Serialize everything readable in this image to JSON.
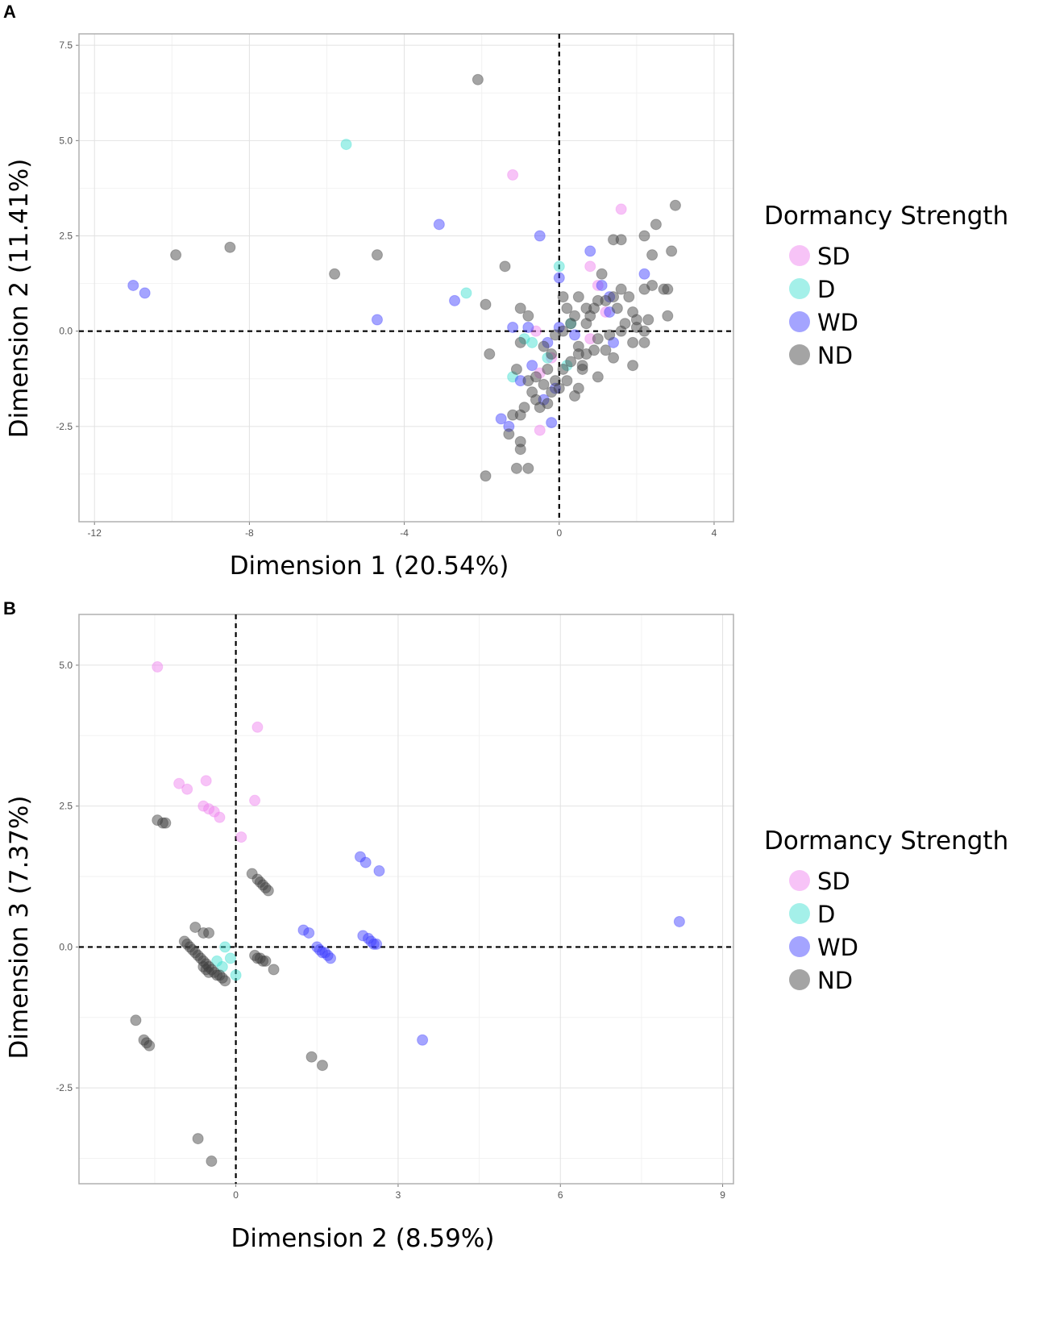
{
  "chart_data": [
    {
      "panel": "A",
      "type": "scatter",
      "title": "",
      "xlabel": "Dimension 1 (20.54%)",
      "ylabel": "Dimension 2 (11.41%)",
      "xlim": [
        -12.4,
        4.5
      ],
      "ylim": [
        -5.0,
        7.8
      ],
      "xticks": [
        -12,
        -8,
        -4,
        0,
        4
      ],
      "yticks": [
        -2.5,
        0.0,
        2.5,
        5.0,
        7.5
      ],
      "xtick_labels": [
        "-12",
        "-8",
        "-4",
        "0",
        "4"
      ],
      "ytick_labels": [
        "-2.5",
        "0.0",
        "2.5",
        "5.0",
        "7.5"
      ],
      "grid": true,
      "reference_lines": {
        "x": 0,
        "y": 0
      },
      "legend": {
        "title": "Dormancy Strength",
        "position": "right",
        "entries": [
          "SD",
          "D",
          "WD",
          "ND"
        ]
      },
      "series": [
        {
          "name": "SD",
          "color": "#ee82ee",
          "points": [
            [
              -1.2,
              4.1
            ],
            [
              1.6,
              3.2
            ],
            [
              0.8,
              1.7
            ],
            [
              1.0,
              1.2
            ],
            [
              -0.6,
              0.0
            ],
            [
              0.8,
              -0.2
            ],
            [
              -0.5,
              -1.1
            ],
            [
              -0.5,
              -2.6
            ],
            [
              -0.2,
              -0.7
            ],
            [
              1.2,
              0.5
            ]
          ]
        },
        {
          "name": "D",
          "color": "#40e0d0",
          "points": [
            [
              -5.5,
              4.9
            ],
            [
              -2.4,
              1.0
            ],
            [
              0.0,
              1.7
            ],
            [
              -1.2,
              -1.2
            ],
            [
              -0.7,
              -0.3
            ],
            [
              -0.3,
              -0.7
            ],
            [
              0.2,
              -0.9
            ],
            [
              -0.9,
              -0.2
            ],
            [
              0.3,
              0.2
            ]
          ]
        },
        {
          "name": "WD",
          "color": "#4040ff",
          "points": [
            [
              -11.0,
              1.2
            ],
            [
              -10.7,
              1.0
            ],
            [
              -3.1,
              2.8
            ],
            [
              -0.5,
              2.5
            ],
            [
              -4.7,
              0.3
            ],
            [
              -2.7,
              0.8
            ],
            [
              -1.2,
              0.1
            ],
            [
              -0.8,
              0.1
            ],
            [
              -0.3,
              -0.3
            ],
            [
              0.0,
              0.1
            ],
            [
              -0.7,
              -0.9
            ],
            [
              -1.0,
              -1.3
            ],
            [
              -1.5,
              -2.3
            ],
            [
              -1.3,
              -2.5
            ],
            [
              -0.2,
              -2.4
            ],
            [
              -0.1,
              -1.5
            ],
            [
              0.8,
              2.1
            ],
            [
              0.0,
              1.4
            ],
            [
              1.1,
              1.2
            ],
            [
              1.3,
              0.9
            ],
            [
              1.3,
              0.5
            ],
            [
              1.4,
              -0.3
            ],
            [
              2.2,
              1.5
            ],
            [
              -0.4,
              -1.8
            ],
            [
              0.4,
              -0.1
            ]
          ]
        },
        {
          "name": "ND",
          "color": "#404040",
          "points": [
            [
              -2.1,
              6.6
            ],
            [
              -8.5,
              2.2
            ],
            [
              -9.9,
              2.0
            ],
            [
              -5.8,
              1.5
            ],
            [
              -4.7,
              2.0
            ],
            [
              -1.4,
              1.7
            ],
            [
              -1.9,
              0.7
            ],
            [
              -1.8,
              -0.6
            ],
            [
              -1.0,
              0.6
            ],
            [
              -0.8,
              0.4
            ],
            [
              -1.0,
              -0.3
            ],
            [
              -0.4,
              -0.4
            ],
            [
              -0.1,
              -0.1
            ],
            [
              0.1,
              0.9
            ],
            [
              0.2,
              0.6
            ],
            [
              0.4,
              0.4
            ],
            [
              0.5,
              0.9
            ],
            [
              0.7,
              0.2
            ],
            [
              0.9,
              0.6
            ],
            [
              1.0,
              0.8
            ],
            [
              1.1,
              1.5
            ],
            [
              1.4,
              0.9
            ],
            [
              1.5,
              0.6
            ],
            [
              1.8,
              0.9
            ],
            [
              2.0,
              0.3
            ],
            [
              2.2,
              1.1
            ],
            [
              2.4,
              1.2
            ],
            [
              2.5,
              2.8
            ],
            [
              2.2,
              2.5
            ],
            [
              2.4,
              2.0
            ],
            [
              1.6,
              2.4
            ],
            [
              1.4,
              2.4
            ],
            [
              2.9,
              2.1
            ],
            [
              3.0,
              3.3
            ],
            [
              2.8,
              1.1
            ],
            [
              2.7,
              1.1
            ],
            [
              2.8,
              0.4
            ],
            [
              2.3,
              0.3
            ],
            [
              2.2,
              0.0
            ],
            [
              1.9,
              -0.3
            ],
            [
              1.9,
              -0.9
            ],
            [
              2.2,
              -0.3
            ],
            [
              1.6,
              0.0
            ],
            [
              1.3,
              -0.1
            ],
            [
              1.0,
              -0.2
            ],
            [
              0.9,
              -0.5
            ],
            [
              0.7,
              -0.6
            ],
            [
              0.5,
              -0.4
            ],
            [
              0.6,
              -0.9
            ],
            [
              0.3,
              -0.8
            ],
            [
              0.1,
              -1.0
            ],
            [
              -0.1,
              -1.3
            ],
            [
              -0.2,
              -1.6
            ],
            [
              -0.3,
              -1.9
            ],
            [
              -0.5,
              -2.0
            ],
            [
              -0.6,
              -1.8
            ],
            [
              -0.7,
              -1.6
            ],
            [
              -0.8,
              -1.3
            ],
            [
              -0.9,
              -2.0
            ],
            [
              -1.0,
              -2.2
            ],
            [
              -1.2,
              -2.2
            ],
            [
              -1.3,
              -2.7
            ],
            [
              -1.0,
              -2.9
            ],
            [
              -1.0,
              -3.1
            ],
            [
              -1.1,
              -3.6
            ],
            [
              -0.8,
              -3.6
            ],
            [
              -1.9,
              -3.8
            ],
            [
              -1.1,
              -1.0
            ],
            [
              -0.6,
              -1.2
            ],
            [
              0.2,
              -1.3
            ],
            [
              0.4,
              -1.7
            ],
            [
              -0.3,
              -1.0
            ],
            [
              0.6,
              -1.0
            ],
            [
              1.0,
              -1.2
            ],
            [
              1.2,
              -0.5
            ],
            [
              1.4,
              -0.7
            ],
            [
              0.8,
              0.4
            ],
            [
              0.3,
              0.2
            ],
            [
              0.1,
              0.0
            ],
            [
              -0.2,
              -0.6
            ],
            [
              0.5,
              -0.6
            ],
            [
              1.7,
              0.2
            ],
            [
              1.9,
              0.5
            ],
            [
              2.0,
              0.1
            ],
            [
              0.7,
              0.6
            ],
            [
              1.2,
              0.8
            ],
            [
              1.6,
              1.1
            ],
            [
              0.5,
              -1.5
            ],
            [
              0.0,
              -1.5
            ],
            [
              -0.4,
              -1.4
            ]
          ]
        }
      ]
    },
    {
      "panel": "B",
      "type": "scatter",
      "title": "",
      "xlabel": "Dimension 2 (8.59%)",
      "ylabel": "Dimension 3 (7.37%)",
      "xlim": [
        -2.9,
        9.2
      ],
      "ylim": [
        -4.2,
        5.9
      ],
      "xticks": [
        0,
        3,
        6,
        9
      ],
      "yticks": [
        -2.5,
        0.0,
        2.5,
        5.0
      ],
      "xtick_labels": [
        "0",
        "3",
        "6",
        "9"
      ],
      "ytick_labels": [
        "-2.5",
        "0.0",
        "2.5",
        "5.0"
      ],
      "grid": true,
      "reference_lines": {
        "x": 0,
        "y": 0
      },
      "legend": {
        "title": "Dormancy Strength",
        "position": "right",
        "entries": [
          "SD",
          "D",
          "WD",
          "ND"
        ]
      },
      "series": [
        {
          "name": "SD",
          "color": "#ee82ee",
          "points": [
            [
              -1.45,
              4.97
            ],
            [
              0.4,
              3.9
            ],
            [
              -1.05,
              2.9
            ],
            [
              -0.9,
              2.8
            ],
            [
              -0.55,
              2.95
            ],
            [
              -0.6,
              2.5
            ],
            [
              -0.5,
              2.45
            ],
            [
              -0.4,
              2.4
            ],
            [
              -0.3,
              2.3
            ],
            [
              0.35,
              2.6
            ],
            [
              0.1,
              1.95
            ]
          ]
        },
        {
          "name": "D",
          "color": "#40e0d0",
          "points": [
            [
              -0.2,
              0.0
            ],
            [
              -0.1,
              -0.2
            ],
            [
              -0.35,
              -0.25
            ],
            [
              0.0,
              -0.5
            ],
            [
              -0.25,
              -0.35
            ]
          ]
        },
        {
          "name": "WD",
          "color": "#4040ff",
          "points": [
            [
              8.2,
              0.45
            ],
            [
              2.3,
              1.6
            ],
            [
              2.4,
              1.5
            ],
            [
              2.65,
              1.35
            ],
            [
              1.25,
              0.3
            ],
            [
              1.35,
              0.25
            ],
            [
              1.5,
              0.0
            ],
            [
              1.55,
              -0.05
            ],
            [
              1.6,
              -0.1
            ],
            [
              1.7,
              -0.15
            ],
            [
              1.65,
              -0.1
            ],
            [
              1.75,
              -0.2
            ],
            [
              2.35,
              0.2
            ],
            [
              2.45,
              0.15
            ],
            [
              2.5,
              0.1
            ],
            [
              2.55,
              0.05
            ],
            [
              2.6,
              0.05
            ],
            [
              3.45,
              -1.65
            ]
          ]
        },
        {
          "name": "ND",
          "color": "#404040",
          "points": [
            [
              -1.45,
              2.25
            ],
            [
              -1.35,
              2.2
            ],
            [
              -1.3,
              2.2
            ],
            [
              0.3,
              1.3
            ],
            [
              0.4,
              1.2
            ],
            [
              0.45,
              1.15
            ],
            [
              0.5,
              1.1
            ],
            [
              0.55,
              1.05
            ],
            [
              0.6,
              1.0
            ],
            [
              -0.75,
              0.35
            ],
            [
              -0.6,
              0.25
            ],
            [
              -0.5,
              0.25
            ],
            [
              -0.95,
              0.1
            ],
            [
              -0.9,
              0.05
            ],
            [
              -0.85,
              0.0
            ],
            [
              -0.8,
              -0.05
            ],
            [
              -0.75,
              -0.1
            ],
            [
              -0.7,
              -0.15
            ],
            [
              -0.65,
              -0.2
            ],
            [
              -0.6,
              -0.25
            ],
            [
              -0.55,
              -0.3
            ],
            [
              -0.5,
              -0.35
            ],
            [
              -0.45,
              -0.4
            ],
            [
              -0.4,
              -0.45
            ],
            [
              -0.35,
              -0.5
            ],
            [
              -0.3,
              -0.5
            ],
            [
              -0.25,
              -0.55
            ],
            [
              -0.2,
              -0.6
            ],
            [
              -0.6,
              -0.35
            ],
            [
              -0.55,
              -0.4
            ],
            [
              -0.5,
              -0.45
            ],
            [
              0.35,
              -0.15
            ],
            [
              0.4,
              -0.2
            ],
            [
              0.45,
              -0.2
            ],
            [
              0.5,
              -0.25
            ],
            [
              0.55,
              -0.25
            ],
            [
              0.7,
              -0.4
            ],
            [
              -1.85,
              -1.3
            ],
            [
              -1.7,
              -1.65
            ],
            [
              -1.65,
              -1.7
            ],
            [
              -1.6,
              -1.75
            ],
            [
              1.4,
              -1.95
            ],
            [
              1.6,
              -2.1
            ],
            [
              -0.7,
              -3.4
            ],
            [
              -0.45,
              -3.8
            ]
          ]
        }
      ]
    }
  ],
  "panels": [
    {
      "label": "A"
    },
    {
      "label": "B"
    }
  ]
}
